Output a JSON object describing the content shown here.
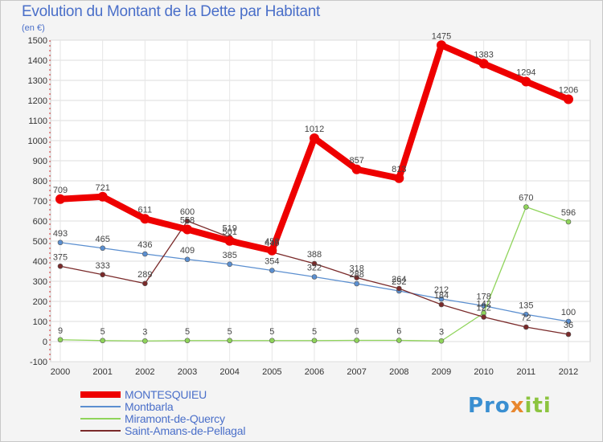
{
  "title": "Evolution du Montant de la Dette par Habitant",
  "unit": "(en €)",
  "logo": {
    "part1": "Pro",
    "part2": "x",
    "part3": "iti"
  },
  "chart_data": {
    "type": "line",
    "x": [
      "2000",
      "2001",
      "2002",
      "2003",
      "2004",
      "2005",
      "2006",
      "2007",
      "2008",
      "2009",
      "2010",
      "2011",
      "2012"
    ],
    "ylim": [
      -100,
      1500
    ],
    "yticks": [
      -100,
      0,
      100,
      200,
      300,
      400,
      500,
      600,
      700,
      800,
      900,
      1000,
      1100,
      1200,
      1300,
      1400,
      1500
    ],
    "grid": true,
    "legend_position": "bottom-left",
    "series": [
      {
        "name": "MONTESQUIEU",
        "color": "#ee0000",
        "values": [
          709,
          721,
          611,
          558,
          501,
          453,
          1012,
          857,
          813,
          1475,
          1383,
          1294,
          1206
        ]
      },
      {
        "name": "Montbarla",
        "color": "#5b8fd0",
        "values": [
          493,
          465,
          436,
          409,
          385,
          354,
          322,
          288,
          252,
          212,
          178,
          135,
          100
        ]
      },
      {
        "name": "Miramont-de-Quercy",
        "color": "#8fd45a",
        "values": [
          9,
          5,
          3,
          5,
          5,
          5,
          5,
          6,
          6,
          3,
          142,
          670,
          596
        ]
      },
      {
        "name": "Saint-Amans-de-Pellagal",
        "color": "#7a2a2a",
        "values": [
          375,
          333,
          289,
          600,
          519,
          445,
          388,
          318,
          264,
          184,
          122,
          72,
          36
        ]
      }
    ]
  }
}
